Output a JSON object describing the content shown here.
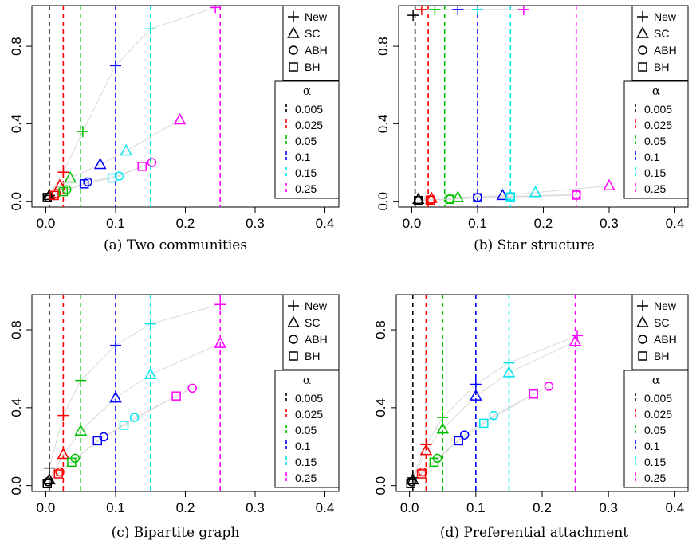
{
  "panel_letters": [
    "(a)",
    "(b)",
    "(c)",
    "(d)"
  ],
  "legend": {
    "methods": [
      "New",
      "SC",
      "ABH",
      "BH"
    ],
    "method_symbols": [
      "plus",
      "triangle",
      "circle",
      "square"
    ],
    "alpha_title": "α",
    "alphas": [
      "0.005",
      "0.025",
      "0.05",
      "0.1",
      "0.15",
      "0.25"
    ],
    "alpha_colors": [
      "#000000",
      "#ff0000",
      "#00c000",
      "#0000ff",
      "#00e5ee",
      "#ff00ff"
    ]
  },
  "chart_data": [
    {
      "type": "scatter",
      "title": "Two communities",
      "x_ticks": [
        "0.0",
        "0.1",
        "0.2",
        "0.3",
        "0.4"
      ],
      "y_ticks": [
        "0.0",
        "0.4",
        "0.8"
      ],
      "xlim": [
        -0.02,
        0.42
      ],
      "ylim": [
        -0.03,
        1.01
      ],
      "vlines": [
        0.005,
        0.025,
        0.05,
        0.1,
        0.15,
        0.25
      ],
      "grid": false,
      "legend_position": "right",
      "series": [
        {
          "name": "New",
          "x": [
            0.005,
            0.025,
            0.053,
            0.1,
            0.15,
            0.243
          ],
          "y": [
            0.03,
            0.15,
            0.36,
            0.7,
            0.89,
            1.0
          ]
        },
        {
          "name": "SC",
          "x": [
            0.005,
            0.02,
            0.035,
            0.078,
            0.115,
            0.192
          ],
          "y": [
            0.03,
            0.08,
            0.12,
            0.19,
            0.26,
            0.42
          ]
        },
        {
          "name": "ABH",
          "x": [
            0.003,
            0.015,
            0.03,
            0.06,
            0.105,
            0.152
          ],
          "y": [
            0.02,
            0.04,
            0.06,
            0.1,
            0.13,
            0.2
          ]
        },
        {
          "name": "BH",
          "x": [
            0.002,
            0.012,
            0.025,
            0.055,
            0.095,
            0.138
          ],
          "y": [
            0.02,
            0.03,
            0.05,
            0.09,
            0.12,
            0.18
          ]
        }
      ]
    },
    {
      "type": "scatter",
      "title": "Star structure",
      "x_ticks": [
        "0.0",
        "0.1",
        "0.2",
        "0.3",
        "0.4"
      ],
      "y_ticks": [
        "0.0",
        "0.4",
        "0.8"
      ],
      "xlim": [
        -0.02,
        0.42
      ],
      "ylim": [
        -0.03,
        1.01
      ],
      "vlines": [
        0.005,
        0.025,
        0.05,
        0.1,
        0.15,
        0.25
      ],
      "grid": false,
      "legend_position": "right",
      "series": [
        {
          "name": "New",
          "x": [
            0.002,
            0.015,
            0.035,
            0.07,
            0.1,
            0.17
          ],
          "y": [
            0.96,
            0.99,
            0.99,
            0.99,
            0.99,
            0.99
          ]
        },
        {
          "name": "SC",
          "x": [
            0.01,
            0.03,
            0.07,
            0.138,
            0.188,
            0.3
          ],
          "y": [
            0.01,
            0.015,
            0.02,
            0.03,
            0.045,
            0.08
          ]
        },
        {
          "name": "ABH",
          "x": [
            0.01,
            0.028,
            0.058,
            0.1,
            0.15,
            0.25
          ],
          "y": [
            0.005,
            0.008,
            0.012,
            0.02,
            0.025,
            0.035
          ]
        },
        {
          "name": "BH",
          "x": [
            0.01,
            0.028,
            0.058,
            0.1,
            0.15,
            0.25
          ],
          "y": [
            0.004,
            0.006,
            0.01,
            0.018,
            0.022,
            0.032
          ]
        }
      ]
    },
    {
      "type": "scatter",
      "title": "Bipartite graph",
      "x_ticks": [
        "0.0",
        "0.1",
        "0.2",
        "0.3",
        "0.4"
      ],
      "y_ticks": [
        "0.0",
        "0.4",
        "0.8"
      ],
      "xlim": [
        -0.02,
        0.42
      ],
      "ylim": [
        -0.03,
        0.98
      ],
      "vlines": [
        0.005,
        0.025,
        0.05,
        0.1,
        0.15,
        0.25
      ],
      "grid": false,
      "legend_position": "right",
      "series": [
        {
          "name": "New",
          "x": [
            0.005,
            0.025,
            0.05,
            0.1,
            0.15,
            0.25
          ],
          "y": [
            0.09,
            0.36,
            0.54,
            0.72,
            0.83,
            0.93
          ]
        },
        {
          "name": "SC",
          "x": [
            0.005,
            0.025,
            0.05,
            0.1,
            0.15,
            0.25
          ],
          "y": [
            0.03,
            0.16,
            0.28,
            0.45,
            0.57,
            0.73
          ]
        },
        {
          "name": "ABH",
          "x": [
            0.003,
            0.02,
            0.042,
            0.083,
            0.127,
            0.21
          ],
          "y": [
            0.02,
            0.07,
            0.14,
            0.25,
            0.35,
            0.5
          ]
        },
        {
          "name": "BH",
          "x": [
            0.002,
            0.018,
            0.037,
            0.074,
            0.112,
            0.187
          ],
          "y": [
            0.01,
            0.06,
            0.12,
            0.23,
            0.31,
            0.46
          ]
        }
      ]
    },
    {
      "type": "scatter",
      "title": "Preferential attachment",
      "x_ticks": [
        "0.0",
        "0.1",
        "0.2",
        "0.3",
        "0.4"
      ],
      "y_ticks": [
        "0.0",
        "0.4",
        "0.8"
      ],
      "xlim": [
        -0.02,
        0.42
      ],
      "ylim": [
        -0.03,
        0.98
      ],
      "vlines": [
        0.005,
        0.025,
        0.05,
        0.1,
        0.15,
        0.25
      ],
      "grid": false,
      "legend_position": "right",
      "series": [
        {
          "name": "New",
          "x": [
            0.005,
            0.025,
            0.05,
            0.1,
            0.15,
            0.253
          ],
          "y": [
            0.04,
            0.21,
            0.35,
            0.52,
            0.63,
            0.77
          ]
        },
        {
          "name": "SC",
          "x": [
            0.005,
            0.025,
            0.05,
            0.1,
            0.15,
            0.25
          ],
          "y": [
            0.03,
            0.18,
            0.29,
            0.46,
            0.58,
            0.74
          ]
        },
        {
          "name": "ABH",
          "x": [
            0.003,
            0.02,
            0.042,
            0.083,
            0.127,
            0.21
          ],
          "y": [
            0.02,
            0.07,
            0.14,
            0.26,
            0.36,
            0.51
          ]
        },
        {
          "name": "BH",
          "x": [
            0.002,
            0.018,
            0.037,
            0.074,
            0.112,
            0.187
          ],
          "y": [
            0.01,
            0.06,
            0.12,
            0.23,
            0.32,
            0.47
          ]
        }
      ]
    }
  ]
}
